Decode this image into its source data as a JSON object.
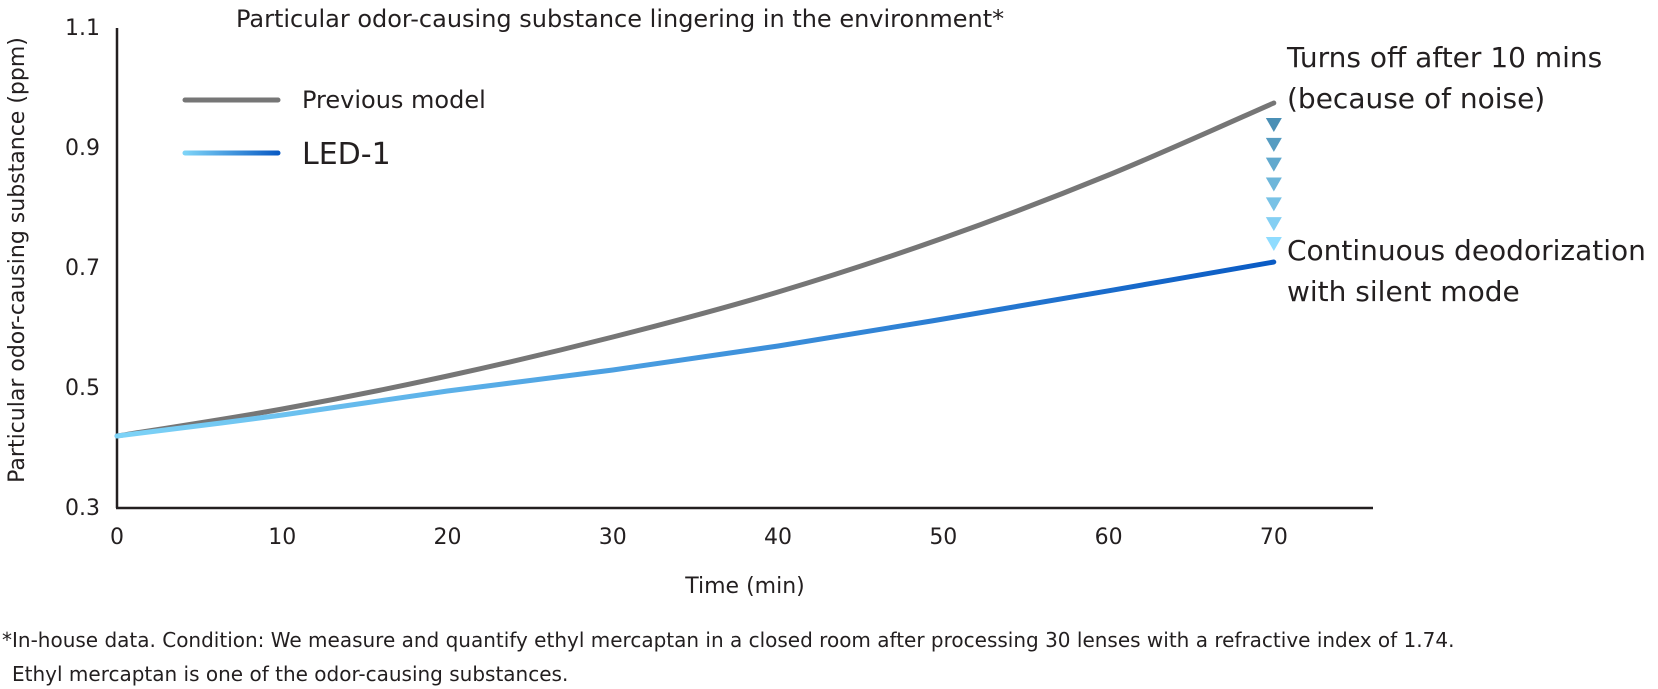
{
  "chart_data": {
    "type": "line",
    "title": "Particular odor-causing substance lingering in the environment*",
    "xlabel": "Time (min)",
    "ylabel": "Particular odor-causing substance (ppm)",
    "xlim": [
      0,
      76
    ],
    "ylim": [
      0.3,
      1.1
    ],
    "x_ticks": [
      0,
      10,
      20,
      30,
      40,
      50,
      60,
      70
    ],
    "y_ticks": [
      0.3,
      0.5,
      0.7,
      0.9,
      1.1
    ],
    "y_tick_labels": [
      "0.3",
      "0.5",
      "0.7",
      "0.9",
      "1.1"
    ],
    "grid": false,
    "legend_position": "top-left",
    "x": [
      0,
      10,
      20,
      30,
      40,
      50,
      60,
      70
    ],
    "series": [
      {
        "name": "Previous model",
        "color": "#767676",
        "values": [
          0.42,
          0.465,
          0.52,
          0.585,
          0.66,
          0.75,
          0.855,
          0.975
        ]
      },
      {
        "name": "LED-1",
        "color_start": "#7dd3f7",
        "color_end": "#0a5bc4",
        "values": [
          0.42,
          0.455,
          0.495,
          0.53,
          0.57,
          0.615,
          0.662,
          0.71
        ]
      }
    ],
    "annotations": [
      {
        "lines": [
          "Turns off after 10 mins",
          "(because of noise)"
        ],
        "at_x": 70,
        "at_y": 0.975
      },
      {
        "lines": [
          "Continuous deodorization",
          "with silent mode"
        ],
        "at_x": 70,
        "at_y": 0.71
      }
    ],
    "arrow_markers": {
      "count": 7,
      "color_top": "#4a8fb5",
      "color_bottom": "#8fdcff"
    }
  },
  "footnotes": [
    "*In-house data. Condition: We measure and quantify ethyl mercaptan in a closed room after processing 30 lenses with a refractive index of 1.74.",
    "Ethyl mercaptan is one of the odor-causing substances."
  ]
}
